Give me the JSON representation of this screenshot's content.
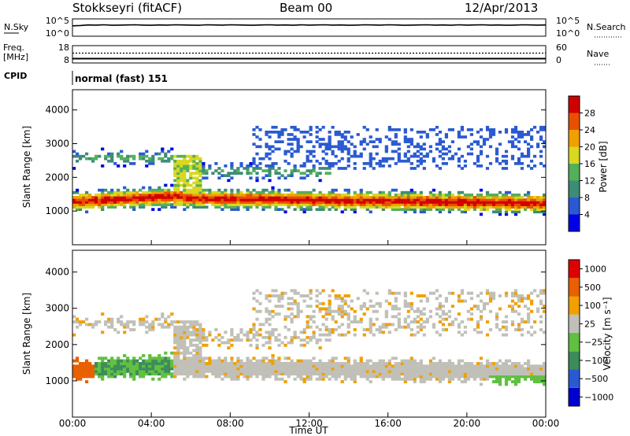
{
  "header": {
    "station": "Stokkseyri (fitACF)",
    "beam": "Beam 00",
    "date": "12/Apr/2013"
  },
  "chart_data": [
    {
      "type": "line",
      "id": "noise-panel",
      "left_label": "N.Sky",
      "right_label": "N.Search",
      "left_ticks": [
        "10^5",
        "10^0"
      ],
      "right_ticks": [
        "10^5",
        "10^0"
      ],
      "x": [
        0,
        0.4,
        0.8,
        1.2,
        1.6,
        2,
        2.4,
        2.8,
        3.2,
        3.6,
        4,
        4.4,
        4.8,
        5.2,
        5.6,
        6,
        6.4,
        6.8,
        7.2,
        7.6,
        8,
        8.4,
        8.8,
        9.2,
        9.6,
        10,
        10.4,
        10.8,
        11.2,
        11.6,
        12,
        12.4,
        12.8,
        13.2,
        13.6,
        14,
        14.4,
        14.8,
        15.2,
        15.6,
        16,
        16.4,
        16.8,
        17.2,
        17.6,
        18,
        18.4,
        18.8,
        19.2,
        19.6,
        20,
        20.4,
        20.8,
        21.2,
        21.6,
        22,
        22.4,
        22.8,
        23.2,
        23.6,
        24
      ],
      "series": [
        {
          "values": [
            0.6,
            0.62,
            0.65,
            0.64,
            0.66,
            0.63,
            0.64,
            0.65,
            0.66,
            0.64,
            0.63,
            0.65,
            0.64,
            0.66,
            0.65,
            0.64,
            0.63,
            0.66,
            0.65,
            0.64,
            0.66,
            0.65,
            0.64,
            0.63,
            0.65,
            0.66,
            0.64,
            0.65,
            0.63,
            0.66,
            0.64,
            0.65,
            0.66,
            0.64,
            0.65,
            0.63,
            0.64,
            0.66,
            0.65,
            0.64,
            0.66,
            0.65,
            0.63,
            0.64,
            0.65,
            0.66,
            0.64,
            0.65,
            0.63,
            0.66,
            0.64,
            0.65,
            0.66,
            0.64,
            0.65,
            0.63,
            0.64,
            0.66,
            0.65,
            0.64,
            0.65
          ]
        }
      ],
      "ylim": [
        0,
        1
      ]
    },
    {
      "type": "line",
      "id": "freq-panel",
      "left_label": "Freq.",
      "left_unit": "[MHz]",
      "right_label": "Nave",
      "left_ticks": [
        "18",
        "8"
      ],
      "right_ticks": [
        "60",
        "0"
      ],
      "freq_mhz": 10.5,
      "nave": 34,
      "ylim": [
        8,
        18
      ]
    },
    {
      "type": "table",
      "id": "cpid-panel",
      "label": "CPID",
      "value": "normal (fast) 151"
    },
    {
      "type": "heatmap",
      "id": "power-panel",
      "ylabel": "Slant Range [km]",
      "yticks": [
        1000,
        2000,
        3000,
        4000
      ],
      "ylim": [
        0,
        4600
      ],
      "xlim": [
        0,
        24
      ],
      "colorbar": {
        "label": "Power [dB]",
        "ticks": [
          "4",
          "8",
          "12",
          "16",
          "20",
          "24",
          "28"
        ],
        "colors": [
          "#0000e8",
          "#2a5ad2",
          "#3c8c78",
          "#52b05a",
          "#d8d820",
          "#f0a000",
          "#e85000",
          "#d00000"
        ]
      },
      "bands": [
        {
          "t0": 0,
          "t1": 5.5,
          "r": 1300,
          "w": 350,
          "v": 20
        },
        {
          "t0": 5.5,
          "t1": 24,
          "r": 1300,
          "w": 220,
          "v": 24
        },
        {
          "t0": 0,
          "t1": 4.5,
          "r": 2550,
          "w": 250,
          "v": 8
        },
        {
          "t0": 4.5,
          "t1": 24,
          "r": 2200,
          "w": 200,
          "v": 10
        }
      ]
    },
    {
      "type": "heatmap",
      "id": "velocity-panel",
      "ylabel": "Slant Range [km]",
      "yticks": [
        1000,
        2000,
        3000,
        4000
      ],
      "ylim": [
        0,
        4600
      ],
      "xlim": [
        0,
        24
      ],
      "colorbar": {
        "label": "Velocity [m s⁻¹]",
        "ticks": [
          "1000",
          "500",
          "100",
          "25",
          "−25",
          "−100",
          "−500",
          "−1000"
        ],
        "colors": [
          "#0000d0",
          "#2a5ad2",
          "#3c8c5a",
          "#60c040",
          "#c0c0b8",
          "#f0a000",
          "#e86000",
          "#e00000"
        ]
      }
    }
  ],
  "x_axis": {
    "ticks": [
      "00:00",
      "04:00",
      "08:00",
      "12:00",
      "16:00",
      "20:00",
      "00:00"
    ],
    "label": "Time UT"
  }
}
